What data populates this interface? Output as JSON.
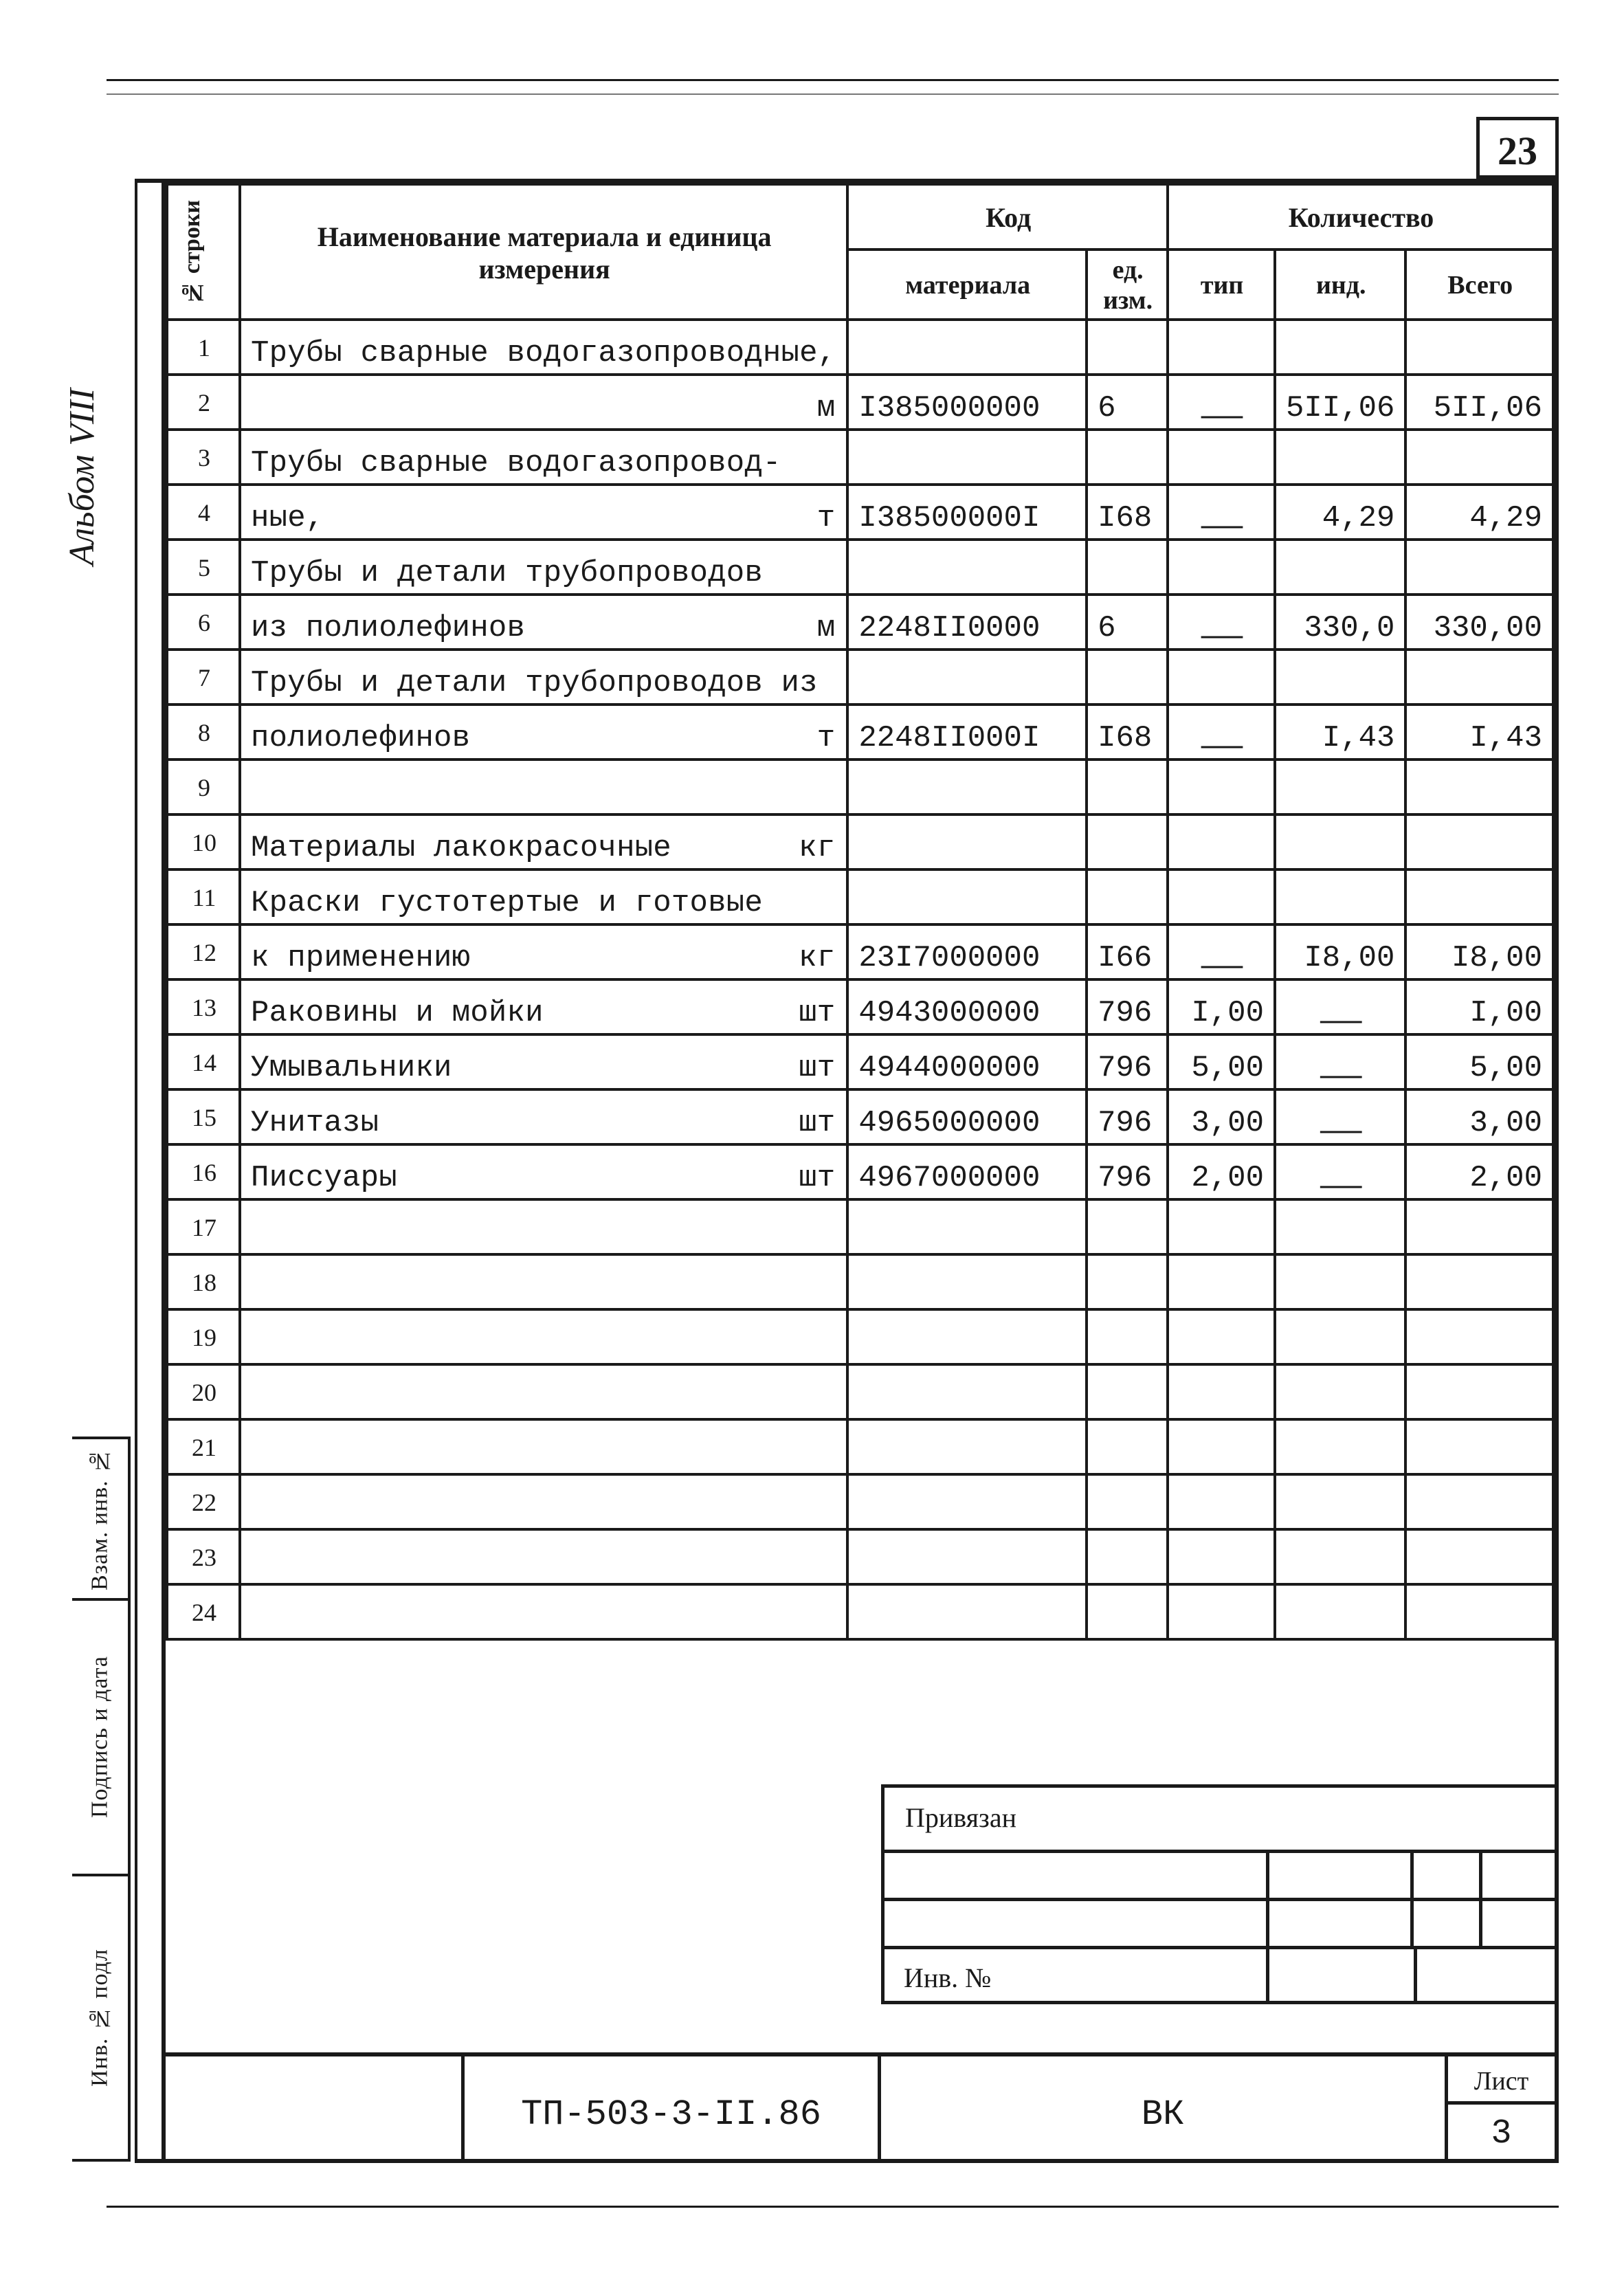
{
  "page_number": "23",
  "album_label": "Альбом VIII",
  "side_stamp": {
    "vzam": "Взам. инв. №",
    "podpis": "Подпись и дата",
    "invpodl": "Инв. № подл"
  },
  "header": {
    "row_num": "№ строки",
    "name": "Наименование материала и единица измерения",
    "code_group": "Код",
    "code_material": "материала",
    "code_unit": "ед. изм.",
    "qty_group": "Количество",
    "qty_typ": "тип",
    "qty_ind": "инд.",
    "qty_total": "Всего"
  },
  "rows": [
    {
      "n": "1",
      "name": "Трубы сварные водогазопроводные,",
      "unit": "",
      "code": "",
      "u": "",
      "typ": "",
      "ind": "",
      "tot": ""
    },
    {
      "n": "2",
      "name": "",
      "unit": "м",
      "code": "I385000000",
      "u": "6",
      "typ": "—",
      "ind": "5II,06",
      "tot": "5II,06"
    },
    {
      "n": "3",
      "name": "Трубы сварные водогазопровод-",
      "unit": "",
      "code": "",
      "u": "",
      "typ": "",
      "ind": "",
      "tot": ""
    },
    {
      "n": "4",
      "name": "ные,",
      "unit": "т",
      "code": "I38500000I",
      "u": "I68",
      "typ": "—",
      "ind": "4,29",
      "tot": "4,29"
    },
    {
      "n": "5",
      "name": "Трубы и детали трубопроводов",
      "unit": "",
      "code": "",
      "u": "",
      "typ": "",
      "ind": "",
      "tot": ""
    },
    {
      "n": "6",
      "name": "из полиолефинов",
      "unit": "м",
      "code": "2248II0000",
      "u": "6",
      "typ": "—",
      "ind": "330,0",
      "tot": "330,00"
    },
    {
      "n": "7",
      "name": "Трубы и детали трубопроводов из",
      "unit": "",
      "code": "",
      "u": "",
      "typ": "",
      "ind": "",
      "tot": ""
    },
    {
      "n": "8",
      "name": "полиолефинов",
      "unit": "т",
      "code": "2248II000I",
      "u": "I68",
      "typ": "—",
      "ind": "I,43",
      "tot": "I,43"
    },
    {
      "n": "9",
      "name": "",
      "unit": "",
      "code": "",
      "u": "",
      "typ": "",
      "ind": "",
      "tot": ""
    },
    {
      "n": "10",
      "name": "Материалы лакокрасочные",
      "unit": "кг",
      "code": "",
      "u": "",
      "typ": "",
      "ind": "",
      "tot": ""
    },
    {
      "n": "11",
      "name": "Краски густотертые и готовые",
      "unit": "",
      "code": "",
      "u": "",
      "typ": "",
      "ind": "",
      "tot": ""
    },
    {
      "n": "12",
      "name": "к применению",
      "unit": "кг",
      "code": "23I7000000",
      "u": "I66",
      "typ": "—",
      "ind": "I8,00",
      "tot": "I8,00"
    },
    {
      "n": "13",
      "name": "Раковины и мойки",
      "unit": "шт",
      "code": "4943000000",
      "u": "796",
      "typ": "I,00",
      "ind": "—",
      "tot": "I,00"
    },
    {
      "n": "14",
      "name": "Умывальники",
      "unit": "шт",
      "code": "4944000000",
      "u": "796",
      "typ": "5,00",
      "ind": "—",
      "tot": "5,00"
    },
    {
      "n": "15",
      "name": "Унитазы",
      "unit": "шт",
      "code": "4965000000",
      "u": "796",
      "typ": "3,00",
      "ind": "—",
      "tot": "3,00"
    },
    {
      "n": "16",
      "name": "Писсуары",
      "unit": "шт",
      "code": "4967000000",
      "u": "796",
      "typ": "2,00",
      "ind": "—",
      "tot": "2,00"
    },
    {
      "n": "17",
      "name": "",
      "unit": "",
      "code": "",
      "u": "",
      "typ": "",
      "ind": "",
      "tot": ""
    },
    {
      "n": "18",
      "name": "",
      "unit": "",
      "code": "",
      "u": "",
      "typ": "",
      "ind": "",
      "tot": ""
    },
    {
      "n": "19",
      "name": "",
      "unit": "",
      "code": "",
      "u": "",
      "typ": "",
      "ind": "",
      "tot": ""
    },
    {
      "n": "20",
      "name": "",
      "unit": "",
      "code": "",
      "u": "",
      "typ": "",
      "ind": "",
      "tot": ""
    },
    {
      "n": "21",
      "name": "",
      "unit": "",
      "code": "",
      "u": "",
      "typ": "",
      "ind": "",
      "tot": ""
    },
    {
      "n": "22",
      "name": "",
      "unit": "",
      "code": "",
      "u": "",
      "typ": "",
      "ind": "",
      "tot": ""
    },
    {
      "n": "23",
      "name": "",
      "unit": "",
      "code": "",
      "u": "",
      "typ": "",
      "ind": "",
      "tot": ""
    },
    {
      "n": "24",
      "name": "",
      "unit": "",
      "code": "",
      "u": "",
      "typ": "",
      "ind": "",
      "tot": ""
    }
  ],
  "title_block": {
    "priv": "Привязан",
    "inv": "Инв. №",
    "docnum": "ТП-503-3-II.86",
    "vk": "ВК",
    "list_label": "Лист",
    "list_num": "3"
  },
  "colors": {
    "line": "#1a1a1a",
    "bg": "#ffffff"
  }
}
